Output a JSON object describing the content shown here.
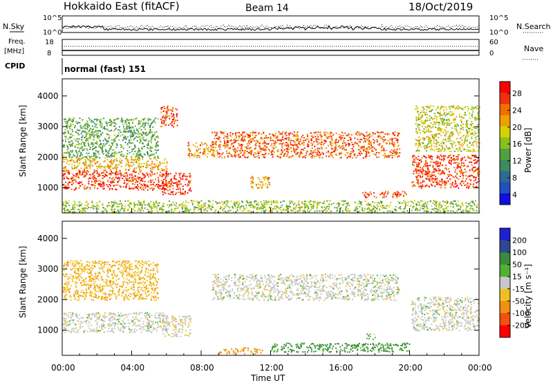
{
  "header": {
    "station": "Hokkaido East (fitACF)",
    "beam": "Beam 14",
    "date": "18/Oct/2019"
  },
  "top_panels": {
    "nsky_label": "N.Sky",
    "nsearch_label": "N.Search",
    "nsky_ticks": [
      "10^5",
      "10^0"
    ],
    "nsearch_ticks": [
      "10^5",
      "10^0"
    ],
    "freq_label": "Freq.",
    "freq_unit": "[MHz]",
    "freq_ticks": [
      "18",
      "8"
    ],
    "nave_label": "Nave",
    "nave_ticks": [
      "60",
      "0"
    ],
    "cpid_label": "CPID",
    "cpid_value": "normal (fast) 151"
  },
  "chart_data": [
    {
      "type": "heatmap",
      "name": "power-panel",
      "ylabel": "Slant Range [km]",
      "yticks": [
        "4000",
        "3000",
        "2000",
        "1000"
      ],
      "ytick_values": [
        4000,
        3000,
        2000,
        1000
      ],
      "ylim": [
        180,
        4560
      ],
      "colorbar": {
        "label": "Power [dB]",
        "ticks": [
          "28",
          "24",
          "20",
          "16",
          "12",
          "8",
          "4"
        ],
        "tick_values": [
          28,
          24,
          20,
          16,
          12,
          8,
          4
        ],
        "range": [
          0,
          30
        ]
      },
      "bands": [
        {
          "t0": 0.0,
          "t1": 6.0,
          "r0": 950,
          "r1": 1600,
          "level": 27
        },
        {
          "t0": 0.0,
          "t1": 6.0,
          "r0": 1600,
          "r1": 2000,
          "level": 20
        },
        {
          "t0": 0.0,
          "t1": 5.5,
          "r0": 2000,
          "r1": 3300,
          "level": 12
        },
        {
          "t0": 5.7,
          "t1": 7.4,
          "r0": 800,
          "r1": 1500,
          "level": 28
        },
        {
          "t0": 5.6,
          "t1": 6.6,
          "r0": 3000,
          "r1": 3700,
          "level": 26
        },
        {
          "t0": 7.2,
          "t1": 8.8,
          "r0": 2000,
          "r1": 2500,
          "level": 22
        },
        {
          "t0": 8.6,
          "t1": 19.4,
          "r0": 2000,
          "r1": 2850,
          "level": 25
        },
        {
          "t0": 10.8,
          "t1": 11.9,
          "r0": 1000,
          "r1": 1400,
          "level": 22
        },
        {
          "t0": 17.2,
          "t1": 19.8,
          "r0": 700,
          "r1": 900,
          "level": 27
        },
        {
          "t0": 20.1,
          "t1": 24.0,
          "r0": 1000,
          "r1": 2100,
          "level": 27
        },
        {
          "t0": 20.3,
          "t1": 24.0,
          "r0": 2200,
          "r1": 3700,
          "level": 17
        },
        {
          "t0": 0.0,
          "t1": 24.0,
          "r0": 200,
          "r1": 600,
          "level": 15
        }
      ]
    },
    {
      "type": "heatmap",
      "name": "velocity-panel",
      "ylabel": "Slant Range [km]",
      "yticks": [
        "4000",
        "3000",
        "2000",
        "1000"
      ],
      "ytick_values": [
        4000,
        3000,
        2000,
        1000
      ],
      "ylim": [
        180,
        4560
      ],
      "colorbar": {
        "label": "Velocity [m s⁻¹]",
        "ticks": [
          "200",
          "100",
          "50",
          "15",
          "-15",
          "-50",
          "-100",
          "-200"
        ],
        "range": [
          -250,
          250
        ]
      },
      "bands": [
        {
          "t0": 0.0,
          "t1": 6.0,
          "r0": 950,
          "r1": 1600,
          "level": 0
        },
        {
          "t0": 0.0,
          "t1": 5.5,
          "r0": 2000,
          "r1": 3300,
          "level": -40
        },
        {
          "t0": 5.7,
          "t1": 7.4,
          "r0": 800,
          "r1": 1500,
          "level": -5
        },
        {
          "t0": 8.6,
          "t1": 19.4,
          "r0": 2000,
          "r1": 2850,
          "level": 0
        },
        {
          "t0": 20.1,
          "t1": 24.0,
          "r0": 1000,
          "r1": 2100,
          "level": 0
        },
        {
          "t0": 9.0,
          "t1": 11.5,
          "r0": 250,
          "r1": 450,
          "level": -60
        },
        {
          "t0": 12.0,
          "t1": 20.0,
          "r0": 300,
          "r1": 600,
          "level": 60
        },
        {
          "t0": 17.5,
          "t1": 18.0,
          "r0": 700,
          "r1": 900,
          "level": 30
        }
      ]
    }
  ],
  "time_axis": {
    "label": "Time UT",
    "ticks": [
      "00:00",
      "04:00",
      "08:00",
      "12:00",
      "16:00",
      "20:00",
      "00:00"
    ],
    "tick_hours": [
      0,
      4,
      8,
      12,
      16,
      20,
      24
    ]
  },
  "colors": {
    "power_scale": [
      "#1010e0",
      "#2050c0",
      "#306a90",
      "#3c8a60",
      "#50a040",
      "#88c020",
      "#d8d000",
      "#f0a000",
      "#f07000",
      "#f03010",
      "#ff0000"
    ],
    "velocity_scale": [
      "#2020d0",
      "#304890",
      "#3c8a3c",
      "#50b030",
      "#c8c8c8",
      "#f0c020",
      "#f09010",
      "#f05010",
      "#ff0000"
    ]
  }
}
